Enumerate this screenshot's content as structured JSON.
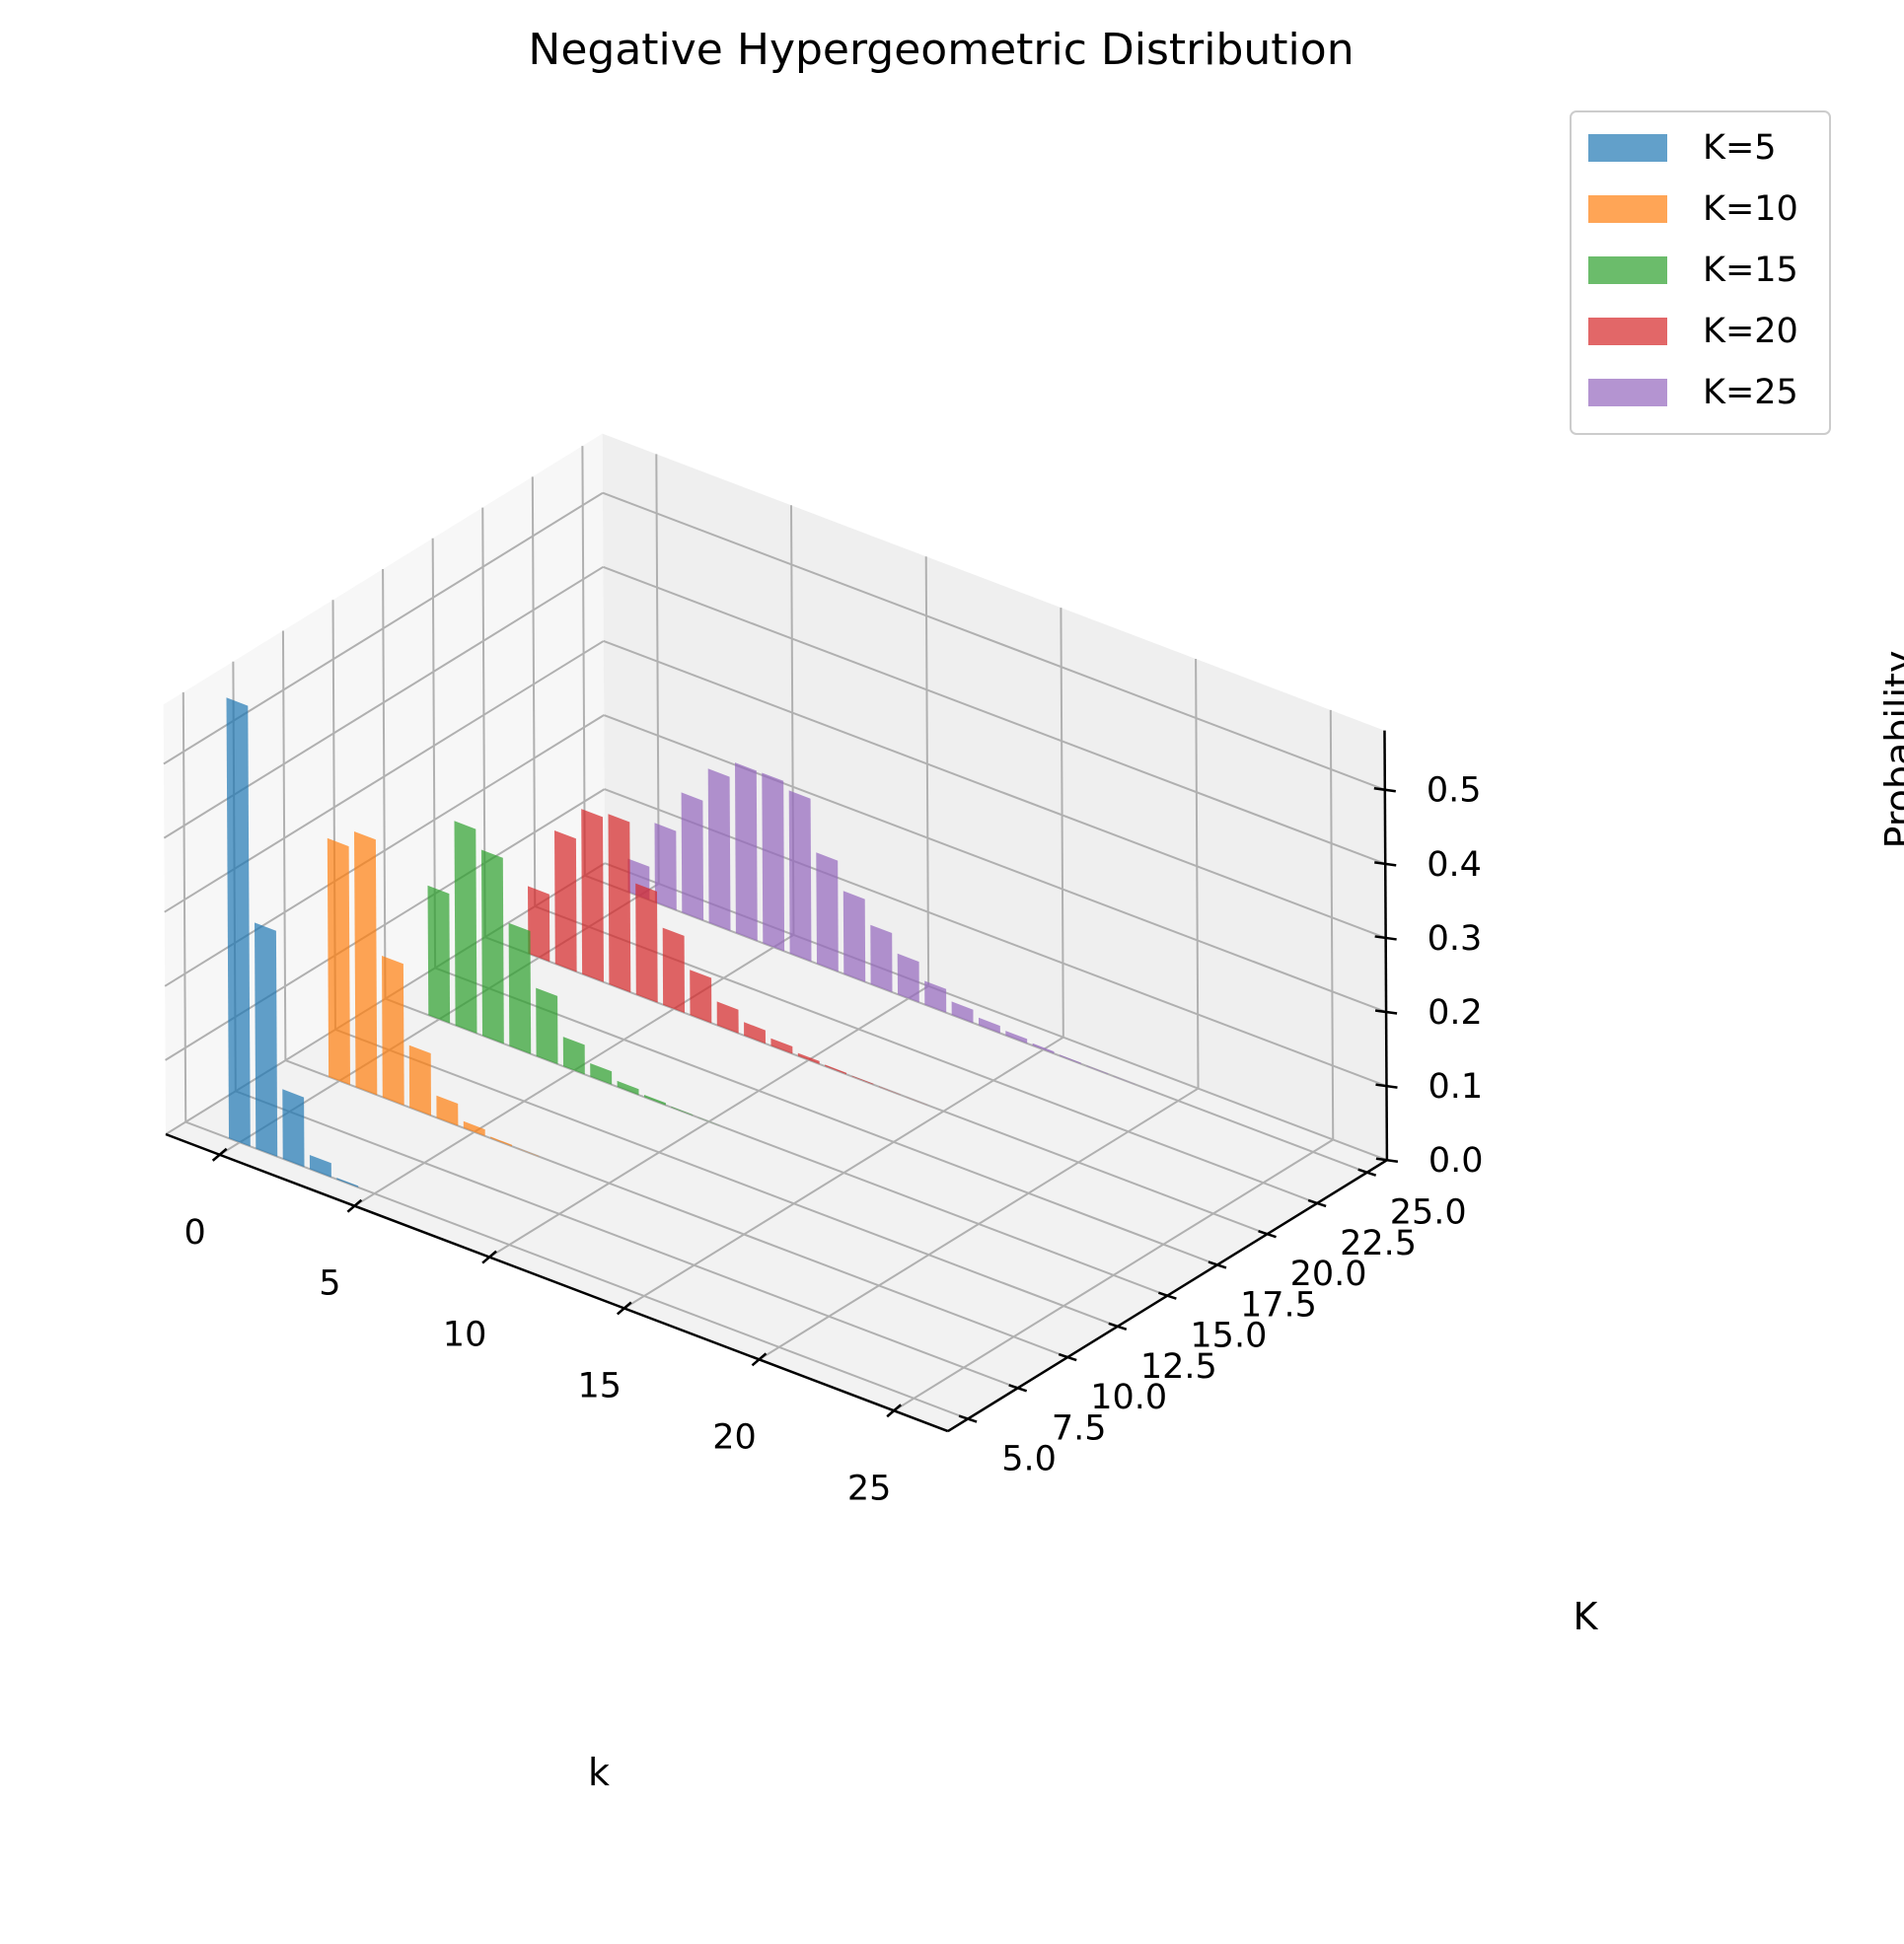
{
  "chart_data": {
    "type": "bar3d",
    "title": "Negative Hypergeometric Distribution",
    "xlabel": "k",
    "ylabel": "K",
    "zlabel": "Probability",
    "x_ticks": [
      "0",
      "5",
      "10",
      "15",
      "20",
      "25"
    ],
    "y_ticks": [
      "5.0",
      "7.5",
      "10.0",
      "12.5",
      "15.0",
      "17.5",
      "20.0",
      "22.5",
      "25.0"
    ],
    "z_ticks": [
      "0.0",
      "0.1",
      "0.2",
      "0.3",
      "0.4",
      "0.5"
    ],
    "xlim": [
      -2,
      27
    ],
    "ylim": [
      4,
      26
    ],
    "zlim": [
      0,
      0.58
    ],
    "grid": true,
    "legend_position": "top-right",
    "series": [
      {
        "name": "K=5",
        "K": 5,
        "color": "#1f77b4",
        "values": [
          0.595,
          0.305,
          0.094,
          0.019,
          0.002
        ]
      },
      {
        "name": "K=10",
        "K": 10,
        "color": "#ff7f0e",
        "values": [
          0.322,
          0.345,
          0.191,
          0.084,
          0.03,
          0.009,
          0.002,
          0.0005
        ]
      },
      {
        "name": "K=15",
        "K": 15,
        "color": "#2ca02c",
        "values": [
          0.175,
          0.276,
          0.251,
          0.166,
          0.092,
          0.04,
          0.018,
          0.008,
          0.003,
          0.001,
          0.0003
        ]
      },
      {
        "name": "K=20",
        "K": 20,
        "color": "#d62728",
        "values": [
          0.091,
          0.18,
          0.223,
          0.23,
          0.15,
          0.104,
          0.061,
          0.032,
          0.018,
          0.01,
          0.004,
          0.002,
          0.001,
          0.0004,
          0.0001
        ]
      },
      {
        "name": "K=25",
        "K": 25,
        "color": "#9467bd",
        "values": [
          0.045,
          0.107,
          0.162,
          0.208,
          0.23,
          0.23,
          0.22,
          0.15,
          0.112,
          0.08,
          0.055,
          0.032,
          0.018,
          0.01,
          0.006,
          0.003,
          0.0015,
          0.0008,
          0.0004,
          0.0002
        ]
      }
    ]
  }
}
